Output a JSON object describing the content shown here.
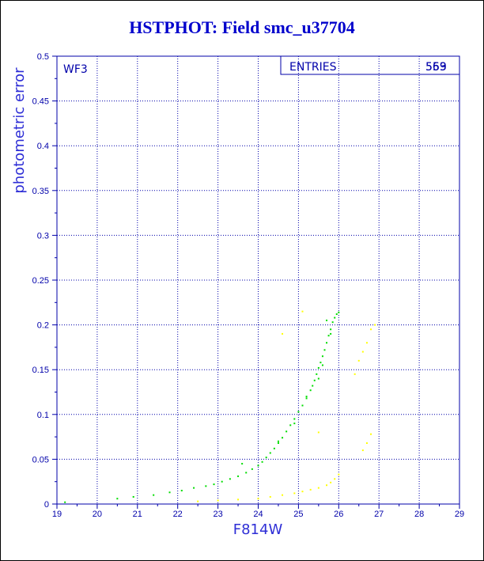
{
  "chart_data": {
    "type": "scatter",
    "title": "HSTPHOT: Field smc_u37704",
    "xlabel": "F814W",
    "ylabel": "photometric error",
    "xlim": [
      19,
      29
    ],
    "ylim": [
      0,
      0.5
    ],
    "x_ticks": [
      "19",
      "20",
      "21",
      "22",
      "23",
      "24",
      "25",
      "26",
      "27",
      "28",
      "29"
    ],
    "y_ticks": [
      "0",
      "0.05",
      "0.1",
      "0.15",
      "0.2",
      "0.25",
      "0.3",
      "0.35",
      "0.4",
      "0.45",
      "0.5"
    ],
    "grid": true,
    "panel_label": "WF3",
    "stats_box": {
      "label": "ENTRIES",
      "values": [
        "569",
        "553"
      ]
    },
    "colors": {
      "axis": "#0000aa",
      "series_main": "#00dd00",
      "series_secondary": "#ffff00"
    },
    "series": [
      {
        "color": "#00dd00",
        "x": [
          19.2,
          20.5,
          20.9,
          21.4,
          21.8,
          22.1,
          22.4,
          22.7,
          22.9,
          23.1,
          23.3,
          23.5,
          23.7,
          23.85,
          24.0,
          24.1,
          24.2,
          24.3,
          24.4,
          24.5,
          24.6,
          24.7,
          24.8,
          24.9,
          25.0,
          25.1,
          25.2,
          25.3,
          25.35,
          25.4,
          25.45,
          25.5,
          25.55,
          25.6,
          25.65,
          25.7,
          25.75,
          25.8,
          25.85,
          25.9,
          25.95,
          26.0,
          25.6,
          25.5,
          25.2,
          24.9,
          24.5,
          23.6,
          25.8,
          25.7
        ],
        "y": [
          0.002,
          0.006,
          0.008,
          0.01,
          0.013,
          0.015,
          0.018,
          0.02,
          0.022,
          0.025,
          0.028,
          0.031,
          0.035,
          0.039,
          0.043,
          0.047,
          0.052,
          0.057,
          0.062,
          0.068,
          0.074,
          0.081,
          0.088,
          0.095,
          0.103,
          0.11,
          0.118,
          0.127,
          0.132,
          0.138,
          0.145,
          0.152,
          0.158,
          0.165,
          0.172,
          0.18,
          0.188,
          0.195,
          0.203,
          0.208,
          0.212,
          0.214,
          0.155,
          0.14,
          0.12,
          0.09,
          0.07,
          0.045,
          0.19,
          0.205
        ]
      },
      {
        "color": "#ffff00",
        "x": [
          22.5,
          23.0,
          23.5,
          24.0,
          24.3,
          24.6,
          24.9,
          25.1,
          25.3,
          25.5,
          25.7,
          25.8,
          25.9,
          26.0,
          26.6,
          26.7,
          26.8,
          26.5,
          26.6,
          26.7,
          26.9,
          26.4,
          26.8,
          25.1,
          24.6,
          25.5
        ],
        "y": [
          0.003,
          0.004,
          0.005,
          0.006,
          0.008,
          0.01,
          0.012,
          0.014,
          0.016,
          0.018,
          0.021,
          0.024,
          0.028,
          0.033,
          0.06,
          0.068,
          0.078,
          0.16,
          0.17,
          0.18,
          0.2,
          0.145,
          0.195,
          0.215,
          0.19,
          0.08
        ]
      }
    ]
  }
}
